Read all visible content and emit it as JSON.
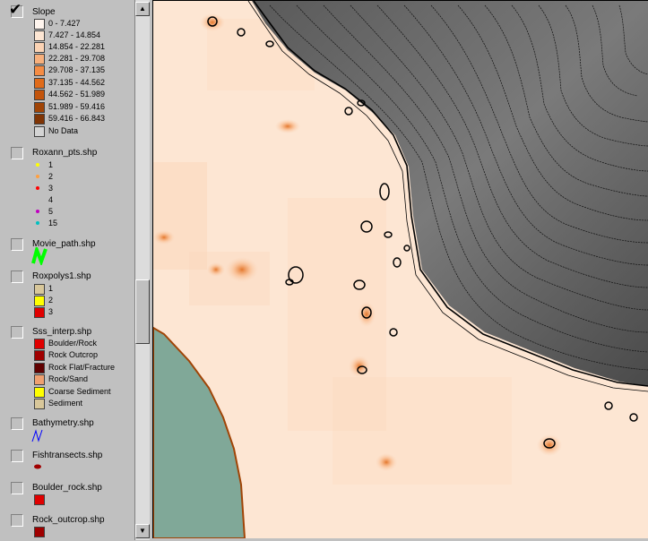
{
  "toc": {
    "layers": [
      {
        "name": "Slope",
        "checked": true,
        "classes": [
          {
            "label": "0 - 7.427",
            "color": "#fff5ee"
          },
          {
            "label": "7.427 - 14.854",
            "color": "#fde6d3"
          },
          {
            "label": "14.854 - 22.281",
            "color": "#fbd3b4"
          },
          {
            "label": "22.281 - 29.708",
            "color": "#f8b07c"
          },
          {
            "label": "29.708 - 37.135",
            "color": "#f58c44"
          },
          {
            "label": "37.135 - 44.562",
            "color": "#e06b1a"
          },
          {
            "label": "44.562 - 51.989",
            "color": "#c3540b"
          },
          {
            "label": "51.989 - 59.416",
            "color": "#a04406"
          },
          {
            "label": "59.416 - 66.843",
            "color": "#803404"
          },
          {
            "label": "No Data",
            "color": "#d4d4d4"
          }
        ]
      },
      {
        "name": "Roxann_pts.shp",
        "checked": false,
        "classes": [
          {
            "label": "1",
            "color": "#ffff00"
          },
          {
            "label": "2",
            "color": "#ffa040"
          },
          {
            "label": "3",
            "color": "#ff0000"
          },
          {
            "label": "4",
            "color": "#c0c0c0"
          },
          {
            "label": "5",
            "color": "#c000c0"
          },
          {
            "label": "15",
            "color": "#00c0c0"
          }
        ]
      },
      {
        "name": "Movie_path.shp",
        "checked": false,
        "symbol_color": "#00ff00"
      },
      {
        "name": "Roxpolys1.shp",
        "checked": false,
        "classes": [
          {
            "label": "1",
            "color": "#d8c79a"
          },
          {
            "label": "2",
            "color": "#ffff00"
          },
          {
            "label": "3",
            "color": "#e00000"
          }
        ]
      },
      {
        "name": "Sss_interp.shp",
        "checked": false,
        "classes": [
          {
            "label": "Boulder/Rock",
            "color": "#e00000"
          },
          {
            "label": "Rock Outcrop",
            "color": "#a00000"
          },
          {
            "label": "Rock Flat/Fracture",
            "color": "#600000"
          },
          {
            "label": "Rock/Sand",
            "color": "#f0a070"
          },
          {
            "label": "Coarse Sediment",
            "color": "#ffff00"
          },
          {
            "label": "Sediment",
            "color": "#d8c79a"
          }
        ]
      },
      {
        "name": "Bathymetry.shp",
        "checked": false,
        "symbol_color": "#0000ff"
      },
      {
        "name": "Fishtransects.shp",
        "checked": false,
        "symbol_color": "#a00000"
      },
      {
        "name": "Boulder_rock.shp",
        "checked": false,
        "symbol_color": "#e00000"
      },
      {
        "name": "Rock_outcrop.shp",
        "checked": false,
        "symbol_color": "#a00000"
      }
    ],
    "check_mark": "✔"
  },
  "scrollbar": {
    "up_arrow": "▲",
    "down_arrow": "▼"
  }
}
